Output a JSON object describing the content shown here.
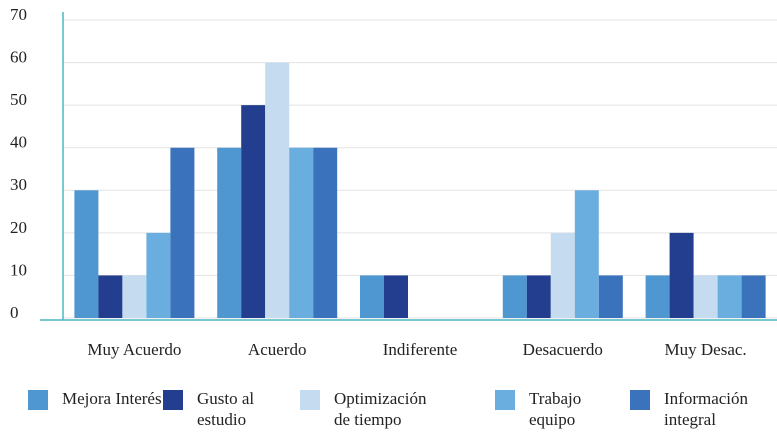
{
  "chart_data": {
    "type": "bar",
    "categories": [
      "Muy Acuerdo",
      "Acuerdo",
      "Indiferente",
      "Desacuerdo",
      "Muy Desac."
    ],
    "series": [
      {
        "name": "Mejora Interés",
        "color": "#4e97d1",
        "values": [
          30,
          40,
          10,
          10,
          10
        ]
      },
      {
        "name": "Gusto al estudio",
        "color": "#233e8f",
        "values": [
          10,
          50,
          10,
          10,
          20
        ]
      },
      {
        "name": "Optimización de tiempo",
        "color": "#c5dcf0",
        "values": [
          10,
          60,
          0,
          20,
          10
        ]
      },
      {
        "name": "Trabajo equipo",
        "color": "#6aaee0",
        "values": [
          20,
          40,
          0,
          30,
          10
        ]
      },
      {
        "name": "Información integral",
        "color": "#3a73bb",
        "values": [
          40,
          40,
          0,
          10,
          10
        ]
      }
    ],
    "ylim": [
      0,
      70
    ],
    "yticks": [
      0,
      10,
      20,
      30,
      40,
      50,
      60,
      70
    ],
    "grid": true,
    "legend": "bottom"
  }
}
